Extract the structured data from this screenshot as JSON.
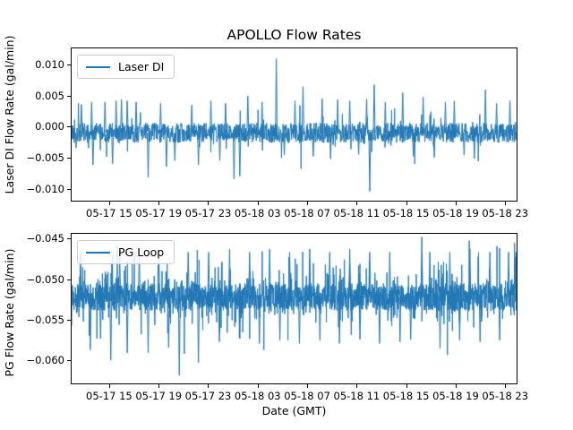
{
  "title": "APOLLO Flow Rates",
  "xlabel": "Date (GMT)",
  "accent_color": "#1f77b4",
  "chart_data": [
    {
      "type": "line",
      "title": "",
      "ylabel": "Laser DI Flow Rate (gal/min)",
      "legend_position": "upper left",
      "grid": false,
      "ylim": [
        -0.012,
        0.0127
      ],
      "yticks": [
        0.01,
        0.005,
        0.0,
        -0.005,
        -0.01
      ],
      "ytick_labels": [
        "0.010",
        "0.005",
        "0.000",
        "−0.005",
        "−0.010"
      ],
      "xticks": {
        "first_frac": 0.086,
        "step_frac": 0.1108,
        "labels": [
          "05-17 15",
          "05-17 19",
          "05-17 23",
          "05-18 03",
          "05-18 07",
          "05-18 11",
          "05-18 15",
          "05-18 19",
          "05-18 23"
        ]
      },
      "series": [
        {
          "name": "Laser DI",
          "color": "#1f77b4",
          "peaks": [
            [
              0.022,
              0.0036
            ],
            [
              0.045,
              0.004
            ],
            [
              0.048,
              -0.0062
            ],
            [
              0.075,
              0.004
            ],
            [
              0.092,
              -0.006
            ],
            [
              0.1,
              0.0042
            ],
            [
              0.112,
              0.0044
            ],
            [
              0.125,
              0.0042
            ],
            [
              0.145,
              0.004
            ],
            [
              0.172,
              -0.0082
            ],
            [
              0.2,
              0.0038
            ],
            [
              0.213,
              -0.0065
            ],
            [
              0.232,
              -0.0055
            ],
            [
              0.27,
              0.0035
            ],
            [
              0.285,
              -0.0062
            ],
            [
              0.313,
              0.0042
            ],
            [
              0.333,
              -0.0055
            ],
            [
              0.346,
              0.0038
            ],
            [
              0.365,
              -0.0085
            ],
            [
              0.378,
              -0.008
            ],
            [
              0.396,
              0.005
            ],
            [
              0.428,
              0.004
            ],
            [
              0.46,
              0.011
            ],
            [
              0.478,
              -0.0046
            ],
            [
              0.502,
              0.0042
            ],
            [
              0.52,
              0.0065
            ],
            [
              0.543,
              -0.0048
            ],
            [
              0.563,
              0.0045
            ],
            [
              0.582,
              -0.0052
            ],
            [
              0.598,
              0.0044
            ],
            [
              0.625,
              0.0042
            ],
            [
              0.645,
              -0.0045
            ],
            [
              0.663,
              0.0045
            ],
            [
              0.67,
              -0.0105
            ],
            [
              0.68,
              0.0068
            ],
            [
              0.705,
              0.004
            ],
            [
              0.744,
              0.0055
            ],
            [
              0.768,
              -0.0048
            ],
            [
              0.79,
              0.0048
            ],
            [
              0.815,
              -0.005
            ],
            [
              0.84,
              0.004
            ],
            [
              0.86,
              0.0042
            ],
            [
              0.882,
              -0.0046
            ],
            [
              0.905,
              -0.0052
            ],
            [
              0.93,
              0.006
            ],
            [
              0.955,
              0.0038
            ],
            [
              0.985,
              0.0042
            ]
          ]
        }
      ],
      "noise_model": {
        "seed": 42,
        "n_points": 1500,
        "baseline": -0.001,
        "halfband": 0.0016,
        "spike_prob": 0.11,
        "spike_scale": 0.0012,
        "spike_max": 0.0044,
        "up_bias": 0.5
      }
    },
    {
      "type": "line",
      "title": "",
      "ylabel": "PG Flow Rate (gal/min)",
      "legend_position": "upper left",
      "grid": false,
      "ylim": [
        -0.063,
        -0.0443
      ],
      "yticks": [
        -0.045,
        -0.05,
        -0.055,
        -0.06
      ],
      "ytick_labels": [
        "−0.045",
        "−0.050",
        "−0.055",
        "−0.060"
      ],
      "xticks": {
        "first_frac": 0.086,
        "step_frac": 0.1108,
        "labels": [
          "05-17 15",
          "05-17 19",
          "05-17 23",
          "05-18 03",
          "05-18 07",
          "05-18 11",
          "05-18 15",
          "05-18 19",
          "05-18 23"
        ]
      },
      "series": [
        {
          "name": "PG Loop",
          "color": "#1f77b4",
          "peaks": [
            [
              0.02,
              -0.0466
            ],
            [
              0.042,
              -0.0588
            ],
            [
              0.065,
              -0.0574
            ],
            [
              0.088,
              -0.0601
            ],
            [
              0.108,
              -0.0466
            ],
            [
              0.125,
              -0.0592
            ],
            [
              0.152,
              -0.0466
            ],
            [
              0.172,
              -0.0592
            ],
            [
              0.196,
              -0.0466
            ],
            [
              0.218,
              -0.0585
            ],
            [
              0.242,
              -0.062
            ],
            [
              0.262,
              -0.0466
            ],
            [
              0.285,
              -0.0604
            ],
            [
              0.308,
              -0.0466
            ],
            [
              0.332,
              -0.0578
            ],
            [
              0.355,
              -0.0462
            ],
            [
              0.378,
              -0.0574
            ],
            [
              0.4,
              -0.0466
            ],
            [
              0.422,
              -0.058
            ],
            [
              0.445,
              -0.0462
            ],
            [
              0.468,
              -0.0576
            ],
            [
              0.49,
              -0.0466
            ],
            [
              0.512,
              -0.058
            ],
            [
              0.535,
              -0.0462
            ],
            [
              0.558,
              -0.0576
            ],
            [
              0.58,
              -0.0466
            ],
            [
              0.602,
              -0.058
            ],
            [
              0.625,
              -0.0462
            ],
            [
              0.648,
              -0.0575
            ],
            [
              0.67,
              -0.0466
            ],
            [
              0.692,
              -0.058
            ],
            [
              0.715,
              -0.0466
            ],
            [
              0.738,
              -0.0578
            ],
            [
              0.762,
              -0.0575
            ],
            [
              0.787,
              -0.0447
            ],
            [
              0.805,
              -0.0466
            ],
            [
              0.828,
              -0.0586
            ],
            [
              0.85,
              -0.0466
            ],
            [
              0.872,
              -0.0576
            ],
            [
              0.895,
              -0.0462
            ],
            [
              0.918,
              -0.0578
            ],
            [
              0.94,
              -0.0466
            ],
            [
              0.962,
              -0.0576
            ],
            [
              0.982,
              -0.0466
            ]
          ]
        }
      ],
      "noise_model": {
        "seed": 1337,
        "n_points": 2200,
        "baseline": -0.0522,
        "halfband": 0.0017,
        "spike_prob": 0.3,
        "spike_scale": 0.0015,
        "spike_max": 0.006,
        "up_bias": 0.5
      }
    }
  ]
}
